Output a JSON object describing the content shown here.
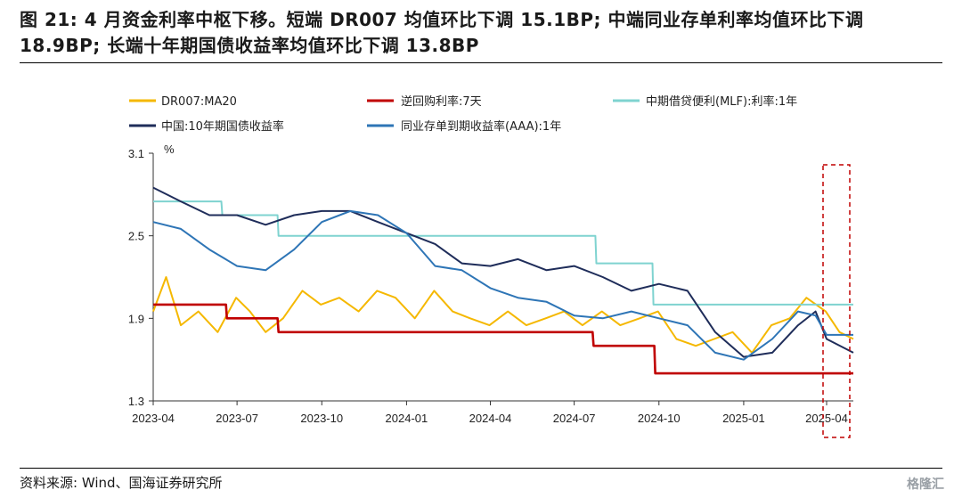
{
  "header": {
    "title": "图 21:  4 月资金利率中枢下移。短端 DR007 均值环比下调 15.1BP; 中端同业存单利率均值环比下调 18.9BP; 长端十年期国债收益率均值环比下调 13.8BP"
  },
  "footer": {
    "source": "资料来源: Wind、国海证券研究所",
    "watermark": "格隆汇"
  },
  "chart_data": {
    "type": "line",
    "title": "",
    "ylabel": "%",
    "ylim": [
      1.3,
      3.1
    ],
    "yticks": [
      "3.1",
      "2.5",
      "1.9",
      "1.3"
    ],
    "xticks": [
      "2023-04",
      "2023-07",
      "2023-10",
      "2024-01",
      "2024-04",
      "2024-07",
      "2024-10",
      "2025-01",
      "2025-04"
    ],
    "xrange": [
      "2023-04-01",
      "2025-04-30"
    ],
    "highlight_period": "2025-04",
    "series": [
      {
        "name": "DR007:MA20",
        "color": "#F5B800",
        "dates": [
          "2023-04-01",
          "2023-04-15",
          "2023-05-01",
          "2023-05-20",
          "2023-06-10",
          "2023-06-30",
          "2023-07-15",
          "2023-08-01",
          "2023-08-20",
          "2023-09-10",
          "2023-09-30",
          "2023-10-20",
          "2023-11-10",
          "2023-11-30",
          "2023-12-20",
          "2024-01-10",
          "2024-01-31",
          "2024-02-20",
          "2024-03-10",
          "2024-03-31",
          "2024-04-20",
          "2024-05-10",
          "2024-05-31",
          "2024-06-20",
          "2024-07-10",
          "2024-07-31",
          "2024-08-20",
          "2024-09-10",
          "2024-09-30",
          "2024-10-20",
          "2024-11-10",
          "2024-11-30",
          "2024-12-20",
          "2025-01-10",
          "2025-01-31",
          "2025-02-20",
          "2025-03-10",
          "2025-03-31",
          "2025-04-15",
          "2025-04-30"
        ],
        "values": [
          1.95,
          2.2,
          1.85,
          1.95,
          1.8,
          2.05,
          1.95,
          1.8,
          1.9,
          2.1,
          2.0,
          2.05,
          1.95,
          2.1,
          2.05,
          1.9,
          2.1,
          1.95,
          1.9,
          1.85,
          1.95,
          1.85,
          1.9,
          1.95,
          1.85,
          1.95,
          1.85,
          1.9,
          1.95,
          1.75,
          1.7,
          1.75,
          1.8,
          1.65,
          1.85,
          1.9,
          2.05,
          1.95,
          1.8,
          1.75
        ]
      },
      {
        "name": "逆回购利率:7天",
        "color": "#C00000",
        "dates": [
          "2023-04-01",
          "2023-06-19",
          "2023-06-20",
          "2023-08-14",
          "2023-08-15",
          "2024-07-21",
          "2024-07-22",
          "2024-09-26",
          "2024-09-27",
          "2025-04-30"
        ],
        "values": [
          2.0,
          2.0,
          1.9,
          1.9,
          1.8,
          1.8,
          1.7,
          1.7,
          1.5,
          1.5
        ]
      },
      {
        "name": "中期借贷便利(MLF):利率:1年",
        "color": "#7FD3D0",
        "dates": [
          "2023-04-01",
          "2023-06-14",
          "2023-06-15",
          "2023-08-14",
          "2023-08-15",
          "2024-07-24",
          "2024-07-25",
          "2024-09-24",
          "2024-09-25",
          "2025-04-30"
        ],
        "values": [
          2.75,
          2.75,
          2.65,
          2.65,
          2.5,
          2.5,
          2.3,
          2.3,
          2.0,
          2.0
        ]
      },
      {
        "name": "中国:10年期国债收益率",
        "color": "#1F2D5A",
        "dates": [
          "2023-04-01",
          "2023-05-01",
          "2023-06-01",
          "2023-07-01",
          "2023-08-01",
          "2023-09-01",
          "2023-10-01",
          "2023-11-01",
          "2023-12-01",
          "2024-01-01",
          "2024-02-01",
          "2024-03-01",
          "2024-04-01",
          "2024-05-01",
          "2024-06-01",
          "2024-07-01",
          "2024-08-01",
          "2024-09-01",
          "2024-10-01",
          "2024-11-01",
          "2024-12-01",
          "2025-01-01",
          "2025-02-01",
          "2025-03-01",
          "2025-03-20",
          "2025-04-01",
          "2025-04-30"
        ],
        "values": [
          2.85,
          2.75,
          2.65,
          2.65,
          2.58,
          2.65,
          2.68,
          2.68,
          2.6,
          2.52,
          2.44,
          2.3,
          2.28,
          2.33,
          2.25,
          2.28,
          2.2,
          2.1,
          2.15,
          2.1,
          1.8,
          1.62,
          1.65,
          1.85,
          1.95,
          1.75,
          1.65
        ]
      },
      {
        "name": "同业存单到期收益率(AAA):1年",
        "color": "#2E75B6",
        "dates": [
          "2023-04-01",
          "2023-05-01",
          "2023-06-01",
          "2023-07-01",
          "2023-08-01",
          "2023-09-01",
          "2023-10-01",
          "2023-11-01",
          "2023-12-01",
          "2024-01-01",
          "2024-02-01",
          "2024-03-01",
          "2024-04-01",
          "2024-05-01",
          "2024-06-01",
          "2024-07-01",
          "2024-08-01",
          "2024-09-01",
          "2024-10-01",
          "2024-11-01",
          "2024-12-01",
          "2025-01-01",
          "2025-02-01",
          "2025-03-01",
          "2025-03-20",
          "2025-04-01",
          "2025-04-30"
        ],
        "values": [
          2.6,
          2.55,
          2.4,
          2.28,
          2.25,
          2.4,
          2.6,
          2.68,
          2.65,
          2.52,
          2.28,
          2.25,
          2.12,
          2.05,
          2.02,
          1.92,
          1.9,
          1.95,
          1.9,
          1.85,
          1.65,
          1.6,
          1.75,
          1.95,
          1.92,
          1.78,
          1.78
        ]
      }
    ]
  }
}
